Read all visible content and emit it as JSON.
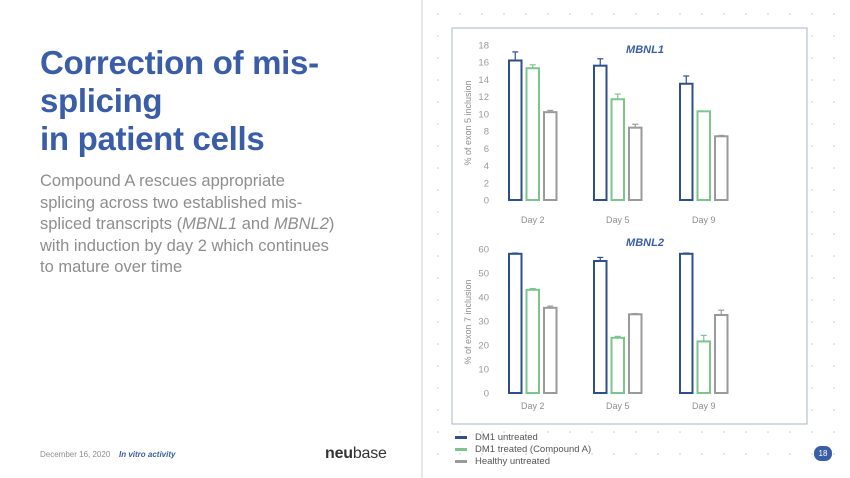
{
  "slide": {
    "title_lines": [
      "Correction of mis-",
      "splicing",
      "in patient cells"
    ],
    "subtitle": {
      "part1": "Compound A rescues appropriate splicing across two established mis-spliced transcripts (",
      "gene1": "MBNL1",
      "part2": " and ",
      "gene2": "MBNL2",
      "part3": ") with induction by day 2 which continues to mature over time"
    },
    "footer": {
      "date": "December 16, 2020",
      "section": "In vitro activity",
      "page": "18"
    },
    "logo": {
      "bold": "neu",
      "regular": "base"
    },
    "colors": {
      "title": "#3a5da8",
      "border": "#aab4c8"
    }
  },
  "legend": [
    {
      "label": "DM1 untreated",
      "color": "#2d4f8e"
    },
    {
      "label": "DM1 treated (Compound A)",
      "color": "#7cc68b"
    },
    {
      "label": "Healthy untreated",
      "color": "#9a9a9a"
    }
  ],
  "chart_data": [
    {
      "type": "bar",
      "title": "MBNL1",
      "ylabel": "% of exon 5 inclusion",
      "ylim": [
        0,
        18
      ],
      "yticks": [
        0,
        2,
        4,
        6,
        8,
        10,
        12,
        14,
        16,
        18
      ],
      "categories": [
        "Day 2",
        "Day 5",
        "Day 9"
      ],
      "series": [
        {
          "name": "DM1 untreated",
          "color": "#2d4f8e",
          "values": [
            16.2,
            15.6,
            13.5
          ],
          "errors": [
            1.0,
            0.8,
            0.9
          ]
        },
        {
          "name": "DM1 treated (Compound A)",
          "color": "#7cc68b",
          "values": [
            15.3,
            11.7,
            10.3
          ],
          "errors": [
            0.4,
            0.6,
            0.0
          ]
        },
        {
          "name": "Healthy untreated",
          "color": "#9a9a9a",
          "values": [
            10.2,
            8.4,
            7.4
          ],
          "errors": [
            0.2,
            0.4,
            0.1
          ]
        }
      ]
    },
    {
      "type": "bar",
      "title": "MBNL2",
      "ylabel": "% of exon 7 inclusion",
      "ylim": [
        0,
        60
      ],
      "yticks": [
        0,
        10,
        20,
        30,
        40,
        50,
        60
      ],
      "categories": [
        "Day 2",
        "Day 5",
        "Day 9"
      ],
      "series": [
        {
          "name": "DM1 untreated",
          "color": "#2d4f8e",
          "values": [
            58,
            55,
            58
          ],
          "errors": [
            0.3,
            1.5,
            0.3
          ]
        },
        {
          "name": "DM1 treated (Compound A)",
          "color": "#7cc68b",
          "values": [
            43,
            23,
            21.5
          ],
          "errors": [
            0.5,
            0.6,
            2.5
          ]
        },
        {
          "name": "Healthy untreated",
          "color": "#9a9a9a",
          "values": [
            35.5,
            32.8,
            32.5
          ],
          "errors": [
            0.7,
            0.3,
            2.0
          ]
        }
      ]
    }
  ]
}
